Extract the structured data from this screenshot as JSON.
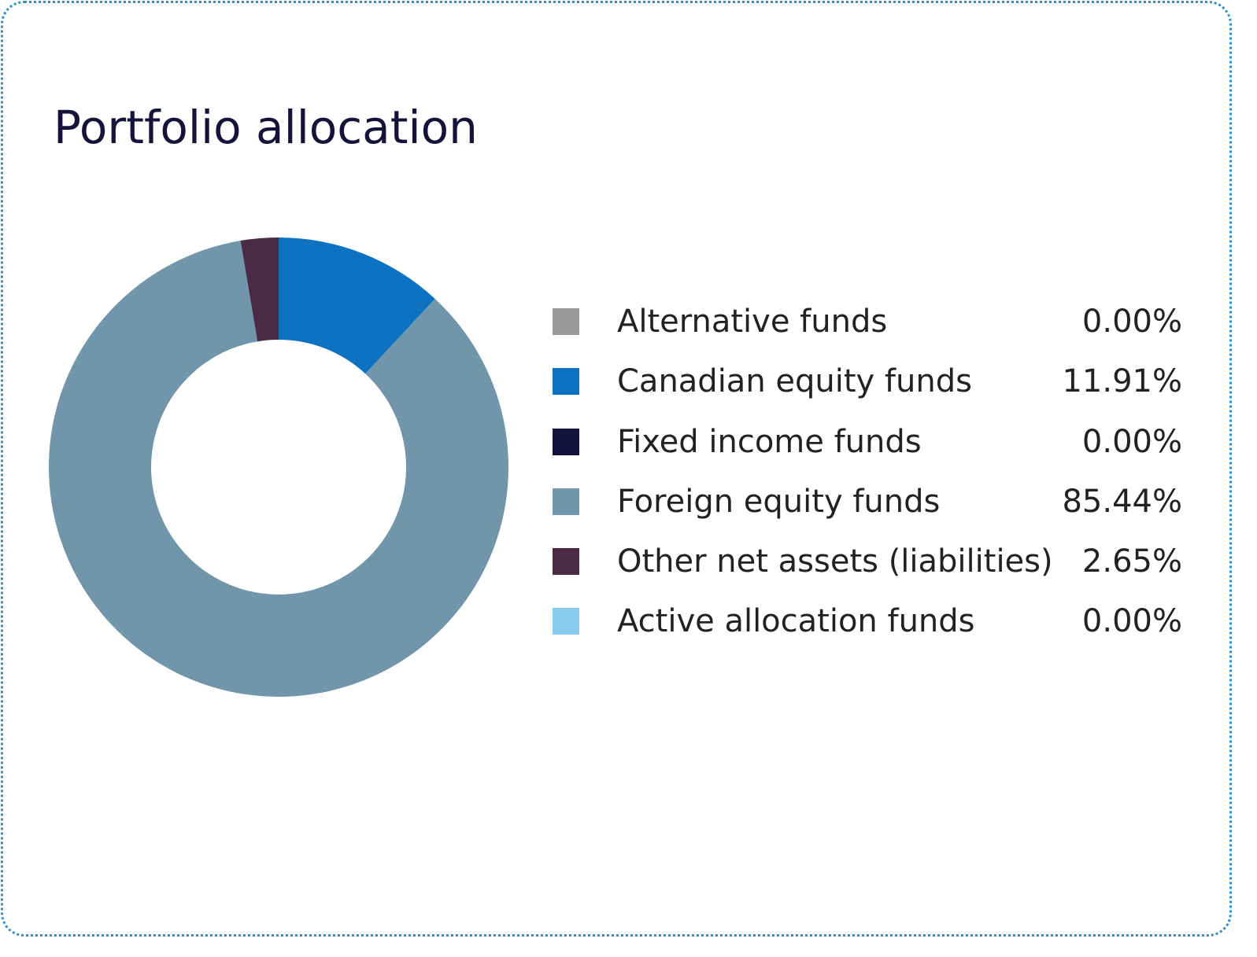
{
  "chart_data": {
    "type": "pie",
    "title": "Portfolio allocation",
    "categories": [
      "Alternative funds",
      "Canadian equity funds",
      "Fixed income funds",
      "Foreign equity funds",
      "Other net assets (liabilities)",
      "Active allocation funds"
    ],
    "values": [
      0.0,
      11.91,
      0.0,
      85.44,
      2.65,
      0.0
    ],
    "value_labels": [
      "0.00%",
      "11.91%",
      "0.00%",
      "85.44%",
      "2.65%",
      "0.00%"
    ],
    "colors": [
      "#9a9a9a",
      "#0e72c2",
      "#12123a",
      "#7196ab",
      "#4a2a45",
      "#88cbf0"
    ],
    "legend": "right",
    "donut": true
  }
}
